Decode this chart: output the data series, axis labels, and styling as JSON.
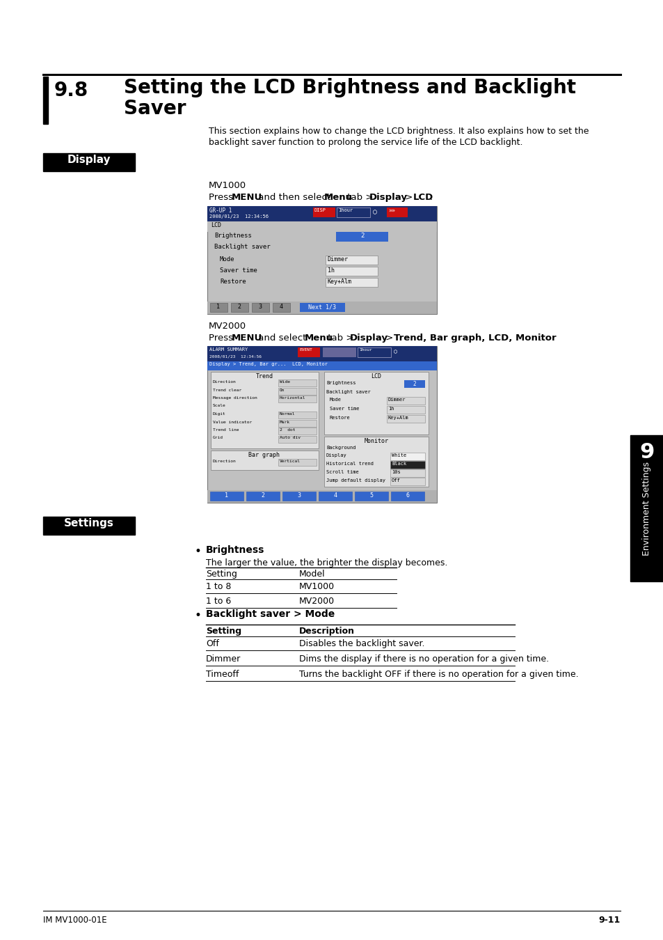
{
  "title_number": "9.8",
  "title_line1": "Setting the LCD Brightness and Backlight",
  "title_line2": "Saver",
  "section_intro_line1": "This section explains how to change the LCD brightness. It also explains how to set the",
  "section_intro_line2": "backlight saver function to prolong the service life of the LCD backlight.",
  "display_label": "Display",
  "mv1000_label": "MV1000",
  "mv2000_label": "MV2000",
  "settings_label": "Settings",
  "bullet1_title": "Brightness",
  "bullet1_desc": "The larger the value, the brighter the display becomes.",
  "brightness_table_headers": [
    "Setting",
    "Model"
  ],
  "brightness_table_rows": [
    [
      "1 to 8",
      "MV1000"
    ],
    [
      "1 to 6",
      "MV2000"
    ]
  ],
  "bullet2_title": "Backlight saver > Mode",
  "mode_table_headers": [
    "Setting",
    "Description"
  ],
  "mode_table_rows": [
    [
      "Off",
      "Disables the backlight saver."
    ],
    [
      "Dimmer",
      "Dims the display if there is no operation for a given time."
    ],
    [
      "Timeoff",
      "Turns the backlight OFF if there is no operation for a given time."
    ]
  ],
  "footer_left": "IM MV1000-01E",
  "footer_right": "9-11",
  "side_label": "Environment Settings",
  "side_number": "9",
  "bg_color": "#ffffff"
}
